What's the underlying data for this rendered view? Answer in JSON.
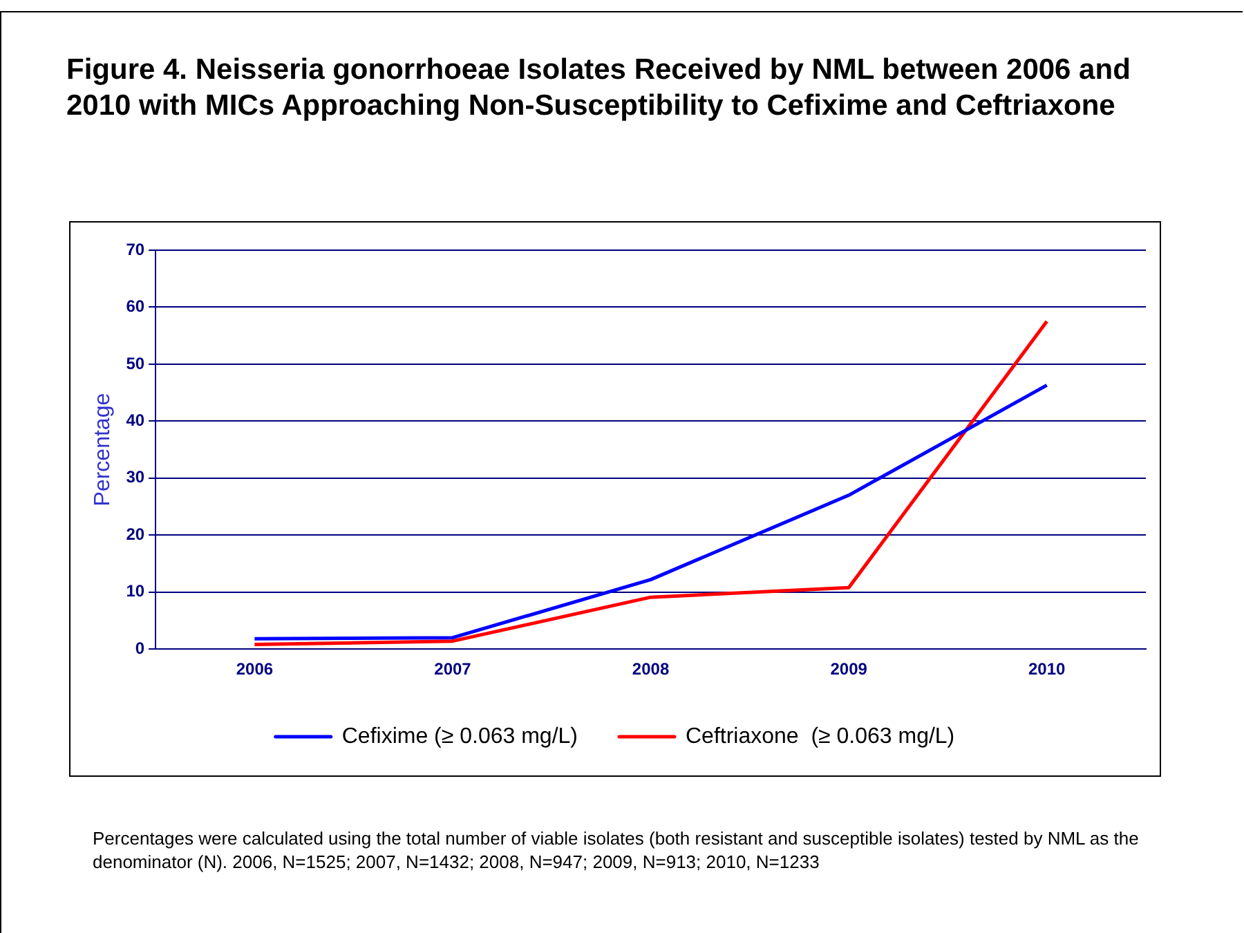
{
  "chart_data": {
    "type": "line",
    "title": "Figure 4. Neisseria gonorrhoeae Isolates Received by NML between 2006 and 2010 with MICs Approaching Non-Susceptibility to Cefixime and Ceftriaxone",
    "ylabel": "Percentage",
    "categories": [
      "2006",
      "2007",
      "2008",
      "2009",
      "2010"
    ],
    "series": [
      {
        "name": "Cefixime (≥ 0.063 mg/L)",
        "color": "#0000ff",
        "values": [
          1.8,
          2.0,
          12.2,
          27.0,
          46.3
        ]
      },
      {
        "name": "Ceftriaxone  (≥ 0.063 mg/L)",
        "color": "#ff0000",
        "values": [
          0.8,
          1.4,
          9.1,
          10.8,
          57.5
        ]
      }
    ],
    "ylim": [
      0,
      70
    ],
    "yticks": [
      0,
      10,
      20,
      30,
      40,
      50,
      60,
      70
    ],
    "grid": "y",
    "legend": "bottom",
    "marker": "none",
    "line_style": "solid",
    "annotations": [
      "Percentages were calculated using the total number of viable isolates (both resistant and susceptible isolates) tested by NML as the denominator (N). 2006, N=1525; 2007, N=1432; 2008, N=947; 2009, N=913; 2010, N=1233"
    ]
  }
}
